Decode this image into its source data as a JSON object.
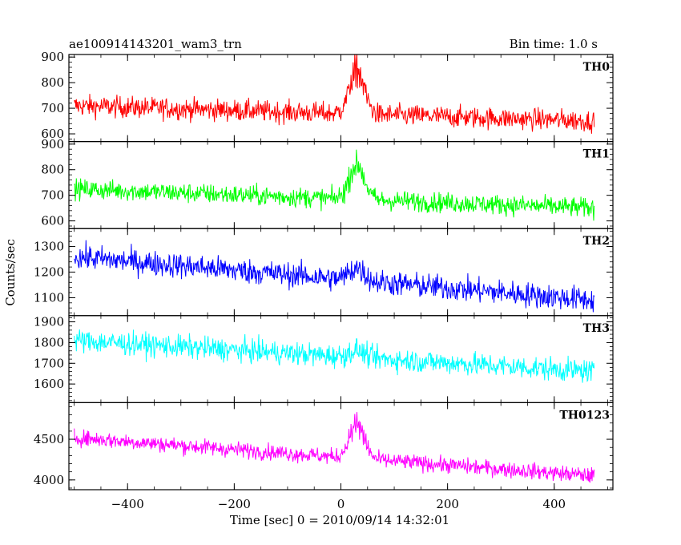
{
  "chart_data": {
    "type": "line",
    "title": "ae100914143201_wam3_trn",
    "bin_time_label": "Bin time: 1.0 s",
    "xlabel": "Time [sec] 0 = 2010/09/14 14:32:01",
    "ylabel": "Counts/sec",
    "xlim": [
      -510,
      510
    ],
    "x_range": [
      -500,
      475
    ],
    "x_ticks": [
      -400,
      -200,
      0,
      200,
      400
    ],
    "x_tick_labels": [
      "−400",
      "−200",
      "0",
      "200",
      "400"
    ],
    "panels": [
      {
        "name": "TH0",
        "color": "#ff0000",
        "ylim": [
          570,
          910
        ],
        "y_ticks": [
          600,
          700,
          800,
          900
        ],
        "y_tick_labels": [
          "600",
          "700",
          "800",
          "900"
        ],
        "baseline_start": 710,
        "baseline_end": 650,
        "noise": 30,
        "flare": {
          "peak_time": 30,
          "amplitude": 200
        }
      },
      {
        "name": "TH1",
        "color": "#00ff00",
        "ylim": [
          570,
          910
        ],
        "y_ticks": [
          600,
          700,
          800,
          900
        ],
        "y_tick_labels": [
          "600",
          "700",
          "800",
          "900"
        ],
        "baseline_start": 725,
        "baseline_end": 650,
        "noise": 28,
        "flare": {
          "peak_time": 30,
          "amplitude": 160
        }
      },
      {
        "name": "TH2",
        "color": "#0000ff",
        "ylim": [
          1030,
          1370
        ],
        "y_ticks": [
          1100,
          1200,
          1300
        ],
        "y_tick_labels": [
          "1100",
          "1200",
          "1300"
        ],
        "baseline_start": 1260,
        "baseline_end": 1090,
        "noise": 35,
        "flare": {
          "peak_time": 30,
          "amplitude": 60
        }
      },
      {
        "name": "TH3",
        "color": "#00ffff",
        "ylim": [
          1510,
          1930
        ],
        "y_ticks": [
          1600,
          1700,
          1800,
          1900
        ],
        "y_tick_labels": [
          "1600",
          "1700",
          "1800",
          "1900"
        ],
        "baseline_start": 1810,
        "baseline_end": 1660,
        "noise": 40,
        "flare": {
          "peak_time": 30,
          "amplitude": 40
        }
      },
      {
        "name": "TH0123",
        "color": "#ff00ff",
        "ylim": [
          3880,
          4950
        ],
        "y_ticks": [
          4000,
          4500
        ],
        "y_tick_labels": [
          "4000",
          "4500"
        ],
        "baseline_start": 4520,
        "baseline_end": 4050,
        "noise": 70,
        "flare": {
          "peak_time": 30,
          "amplitude": 500
        }
      }
    ]
  }
}
